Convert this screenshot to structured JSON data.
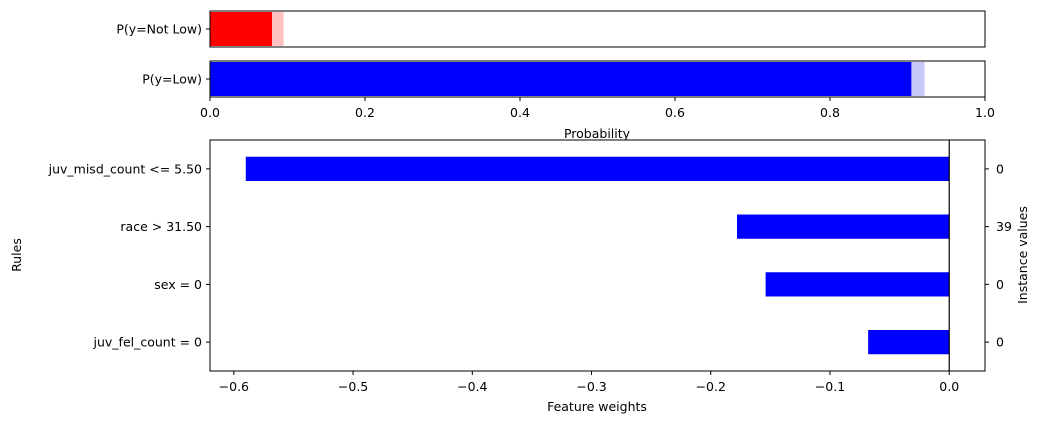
{
  "colors": {
    "not_low": "#ff0000",
    "not_low_band": "#ffc0c0",
    "low": "#0000ff",
    "low_band": "#c8c8f8",
    "axes": "#000000"
  },
  "chart_data": [
    {
      "type": "bar",
      "orientation": "horizontal",
      "categories": [
        "P(y=Not Low)",
        "P(y=Low)"
      ],
      "values": [
        0.08,
        0.905
      ],
      "uncertainty_upper": [
        0.095,
        0.922
      ],
      "xlabel": "Probability",
      "xlim": [
        0,
        1
      ],
      "xticks": [
        0,
        0.2,
        0.4,
        0.6,
        0.8,
        1
      ],
      "xtick_labels": [
        "0.0",
        "0.2",
        "0.4",
        "0.6",
        "0.8",
        "1.0"
      ],
      "grid": false
    },
    {
      "type": "bar",
      "orientation": "horizontal",
      "categories": [
        "juv_misd_count <= 5.50",
        "race > 31.50",
        "sex = 0",
        "juv_fel_count = 0"
      ],
      "values": [
        -0.59,
        -0.178,
        -0.154,
        -0.068
      ],
      "instance_values": [
        "0",
        "39",
        "0",
        "0"
      ],
      "xlabel": "Feature weights",
      "ylabel": "Rules",
      "y2label": "Instance values",
      "xlim": [
        -0.62,
        0.03
      ],
      "xticks": [
        -0.6,
        -0.5,
        -0.4,
        -0.3,
        -0.2,
        -0.1,
        0.0
      ],
      "xtick_labels": [
        "−0.6",
        "−0.5",
        "−0.4",
        "−0.3",
        "−0.2",
        "−0.1",
        "0.0"
      ],
      "grid": false
    }
  ]
}
